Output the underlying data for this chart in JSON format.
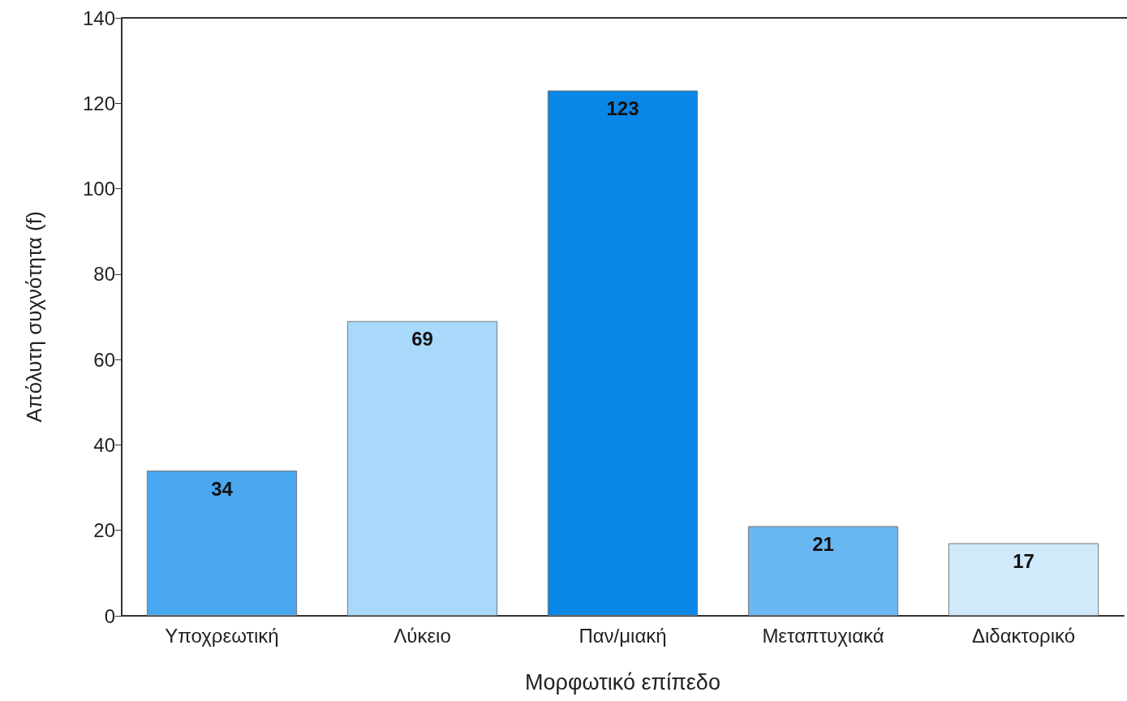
{
  "chart_data": {
    "type": "bar",
    "xlabel": "Μορφωτικό επίπεδο",
    "ylabel": "Απόλυτη συχνότητα (f)",
    "categories": [
      "Υποχρεωτική",
      "Λύκειο",
      "Παν/μιακή",
      "Μεταπτυχιακά",
      "Διδακτορικό"
    ],
    "values": [
      34,
      69,
      123,
      21,
      17
    ],
    "colors": [
      "#4aa8f0",
      "#a8d8fa",
      "#0a86e6",
      "#6ab8f2",
      "#d0eafc"
    ],
    "ylim": [
      0,
      140
    ],
    "yticks": [
      0,
      20,
      40,
      60,
      80,
      100,
      120,
      140
    ],
    "grid": false,
    "data_labels": true
  }
}
